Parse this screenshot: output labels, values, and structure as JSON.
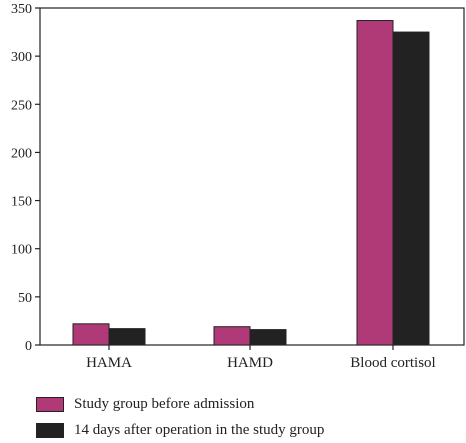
{
  "chart_data": {
    "type": "bar",
    "title": "",
    "xlabel": "",
    "ylabel": "",
    "categories": [
      "HAMA",
      "HAMD",
      "Blood cortisol"
    ],
    "series": [
      {
        "name": "Study group before admission",
        "values": [
          22,
          19,
          337
        ],
        "color": "#b03a78"
      },
      {
        "name": "14 days after operation in the study group",
        "values": [
          17,
          16,
          325
        ],
        "color": "#222222"
      }
    ],
    "ylim": [
      0,
      350
    ],
    "yticks": [
      0,
      50,
      100,
      150,
      200,
      250,
      300,
      350
    ],
    "grid": false,
    "legend_position": "bottom-left"
  }
}
